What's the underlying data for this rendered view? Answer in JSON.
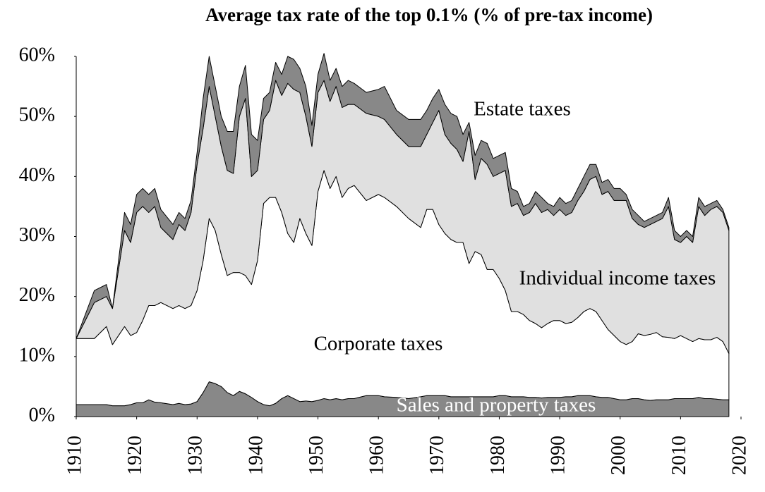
{
  "chart_data": {
    "type": "stacked_area",
    "title": "Average tax rate of the top 0.1% (% of pre-tax income)",
    "x": [
      1910,
      1913,
      1915,
      1916,
      1918,
      1919,
      1920,
      1921,
      1922,
      1923,
      1924,
      1926,
      1927,
      1928,
      1929,
      1930,
      1931,
      1932,
      1933,
      1934,
      1935,
      1936,
      1937,
      1938,
      1939,
      1940,
      1941,
      1942,
      1943,
      1944,
      1945,
      1946,
      1947,
      1948,
      1949,
      1950,
      1951,
      1952,
      1953,
      1954,
      1955,
      1956,
      1958,
      1960,
      1961,
      1963,
      1965,
      1967,
      1968,
      1969,
      1970,
      1971,
      1972,
      1973,
      1974,
      1975,
      1976,
      1977,
      1978,
      1979,
      1980,
      1981,
      1982,
      1983,
      1984,
      1985,
      1986,
      1987,
      1988,
      1989,
      1990,
      1991,
      1992,
      1993,
      1994,
      1995,
      1996,
      1997,
      1998,
      1999,
      2000,
      2001,
      2002,
      2003,
      2004,
      2005,
      2006,
      2007,
      2008,
      2009,
      2010,
      2011,
      2012,
      2013,
      2014,
      2015,
      2016,
      2017,
      2018
    ],
    "series": [
      {
        "name": "Sales and property taxes",
        "color": "#888888",
        "label_color": "#ffffff",
        "values": [
          2,
          2,
          2,
          1.8,
          1.8,
          2,
          2.3,
          2.3,
          2.8,
          2.4,
          2.3,
          2,
          2.2,
          2,
          2.1,
          2.5,
          4,
          5.8,
          5.5,
          5,
          4,
          3.5,
          4.2,
          3.8,
          3.2,
          2.5,
          2,
          1.8,
          2.2,
          3,
          3.5,
          3,
          2.5,
          2.6,
          2.5,
          2.7,
          3,
          2.8,
          3,
          2.8,
          3,
          3,
          3.5,
          3.5,
          3.3,
          3.2,
          3,
          3.3,
          3.5,
          3.5,
          3.5,
          3.5,
          3.3,
          3.3,
          3.3,
          3.3,
          3.3,
          3.3,
          3.3,
          3.3,
          3.5,
          3.5,
          3.3,
          3.3,
          3.3,
          3.2,
          3.2,
          3.1,
          3.2,
          3.2,
          3.2,
          3.3,
          3.3,
          3.5,
          3.5,
          3.5,
          3.3,
          3.2,
          3.2,
          3,
          2.8,
          2.8,
          3,
          3,
          2.8,
          2.7,
          2.8,
          2.8,
          2.8,
          3,
          3,
          3,
          3,
          3.2,
          3,
          3,
          2.9,
          2.8,
          2.8
        ]
      },
      {
        "name": "Corporate taxes",
        "color": "#ffffff",
        "label_color": "#000000",
        "values": [
          11,
          11,
          13,
          10.2,
          13.2,
          11.5,
          11.7,
          13.7,
          15.7,
          16.1,
          16.7,
          16,
          16.3,
          16,
          16.4,
          18.5,
          22,
          27.2,
          25.5,
          22,
          19.5,
          20.5,
          19.8,
          19.7,
          18.8,
          23.5,
          33.5,
          34.7,
          34.3,
          31,
          27,
          26,
          30.5,
          27.9,
          26,
          34.8,
          38,
          35.2,
          37,
          33.7,
          35,
          35.5,
          32.5,
          33.5,
          33.2,
          31.8,
          30,
          28.2,
          31,
          31,
          28.5,
          27,
          26.2,
          25.7,
          25.7,
          22.2,
          24.2,
          23.7,
          21.2,
          21.2,
          19.5,
          17.5,
          14.2,
          14.2,
          13.7,
          12.8,
          12.3,
          11.7,
          12.3,
          12.8,
          12.8,
          12.2,
          12.4,
          13,
          14,
          14.5,
          14.2,
          12.8,
          11.3,
          10.5,
          9.7,
          9.2,
          9.5,
          10.8,
          10.7,
          11,
          11.2,
          10.5,
          10.4,
          10,
          10.5,
          10,
          9.5,
          9.8,
          9.8,
          9.8,
          10.3,
          9.7,
          7.7
        ]
      },
      {
        "name": "Individual income taxes",
        "color": "#e0e0e0",
        "label_color": "#000000",
        "values": [
          0,
          6,
          5,
          6,
          16,
          15.5,
          20,
          19,
          15.5,
          16.5,
          12.5,
          11.5,
          13.5,
          13,
          15.5,
          21,
          22,
          22,
          19,
          18,
          17.5,
          16.5,
          26,
          29.5,
          18,
          15,
          14,
          14.5,
          19.5,
          19.5,
          25,
          25.5,
          21,
          19.5,
          16.5,
          16.5,
          15,
          14.5,
          15,
          15,
          14,
          13.5,
          14.5,
          13,
          13,
          12,
          12,
          13.5,
          12.5,
          14.5,
          19,
          16.5,
          16,
          15.5,
          13.5,
          22,
          12,
          16,
          17.5,
          15.5,
          17.5,
          20,
          17.5,
          18,
          16.5,
          18,
          20,
          19.2,
          19,
          17.5,
          18.5,
          18,
          18.3,
          19.5,
          20,
          21.5,
          22.5,
          21,
          23,
          22.5,
          23.5,
          24,
          20.5,
          18.2,
          18,
          18.3,
          18.5,
          19.7,
          21.8,
          16.5,
          15.5,
          17,
          16.5,
          22,
          20.7,
          21.7,
          21.8,
          21.5,
          20.5
        ]
      },
      {
        "name": "Estate taxes",
        "color": "#888888",
        "label_color": "#000000",
        "values": [
          0,
          2,
          2,
          0,
          3,
          3,
          3,
          3,
          3,
          3,
          3,
          2.5,
          2,
          2,
          2,
          2,
          5,
          5,
          5,
          5,
          6.5,
          7,
          5,
          5.5,
          7,
          5,
          3.5,
          3,
          3,
          3.5,
          4.5,
          5,
          4,
          5,
          3.5,
          3,
          4.5,
          3.5,
          3,
          3.5,
          4,
          3.5,
          3.5,
          4.5,
          5.5,
          4,
          4.5,
          4.5,
          4,
          4,
          3.5,
          5,
          5,
          5.5,
          4.5,
          1.5,
          4,
          3,
          3.5,
          3,
          3,
          3,
          3,
          2,
          1.5,
          1.5,
          2,
          2.5,
          1,
          1.5,
          2,
          2,
          2,
          2,
          2.5,
          2.5,
          2,
          2,
          2,
          2,
          2,
          1,
          1.5,
          1.5,
          1,
          1,
          1,
          1,
          1.5,
          1.5,
          1,
          1,
          1,
          1.5,
          1.5,
          1,
          1,
          0.5,
          0.5
        ]
      }
    ],
    "xlim": [
      1910,
      2020
    ],
    "xticks": [
      1910,
      1920,
      1930,
      1940,
      1950,
      1960,
      1970,
      1980,
      1990,
      2000,
      2010,
      2020
    ],
    "ylim": [
      0,
      60
    ],
    "yticks": [
      {
        "value": 0,
        "label": "0%"
      },
      {
        "value": 10,
        "label": "10%"
      },
      {
        "value": 20,
        "label": "20%"
      },
      {
        "value": 30,
        "label": "30%"
      },
      {
        "value": 40,
        "label": "40%"
      },
      {
        "value": 50,
        "label": "50%"
      },
      {
        "value": 60,
        "label": "60%"
      }
    ]
  }
}
